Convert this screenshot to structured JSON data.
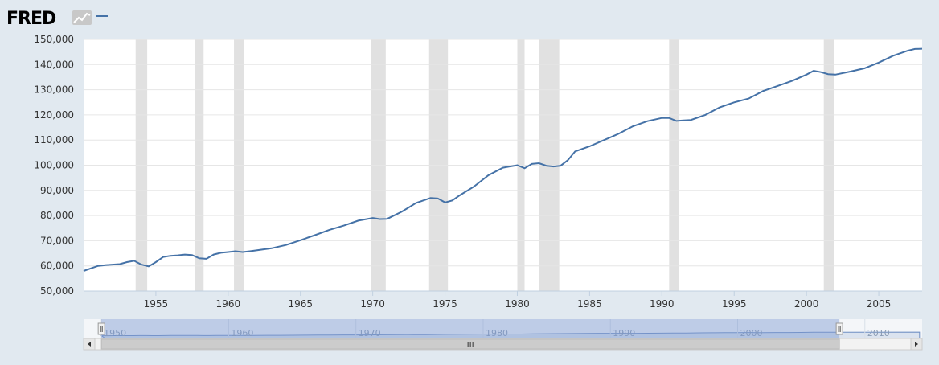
{
  "header": {
    "logo_text": "FRED",
    "logo_icon": "fred-chart-icon",
    "legend_symbol": "line-legend-swatch"
  },
  "colors": {
    "background": "#e1e9f0",
    "plot_background": "#ffffff",
    "series_line": "#4572a7",
    "recession_band": "#e1e1e1",
    "gridline": "#e6e6e6",
    "navigator_fill": "#c7d3e6",
    "navigator_selection": "#a9bde0",
    "scrollbar_thumb": "#cccccc",
    "scrollbar_track": "#f2f2f2"
  },
  "chart_data": {
    "type": "line",
    "title": "",
    "xlabel": "",
    "ylabel": "",
    "grid": true,
    "xlim": [
      1950.0,
      2008.0
    ],
    "ylim": [
      50000,
      150000
    ],
    "y_ticks": [
      "50,000",
      "60,000",
      "70,000",
      "80,000",
      "90,000",
      "100,000",
      "110,000",
      "120,000",
      "130,000",
      "140,000",
      "150,000"
    ],
    "y_tick_values": [
      50000,
      60000,
      70000,
      80000,
      90000,
      100000,
      110000,
      120000,
      130000,
      140000,
      150000
    ],
    "x_ticks": [
      "1955",
      "1960",
      "1965",
      "1970",
      "1975",
      "1980",
      "1985",
      "1990",
      "1995",
      "2000",
      "2005"
    ],
    "x_tick_values": [
      1955,
      1960,
      1965,
      1970,
      1975,
      1980,
      1985,
      1990,
      1995,
      2000,
      2005
    ],
    "recessions": [
      [
        1953.6,
        1954.4
      ],
      [
        1957.7,
        1958.3
      ],
      [
        1960.4,
        1961.1
      ],
      [
        1969.9,
        1970.9
      ],
      [
        1973.9,
        1975.2
      ],
      [
        1980.0,
        1980.5
      ],
      [
        1981.5,
        1982.9
      ],
      [
        1990.5,
        1991.2
      ],
      [
        2001.2,
        2001.9
      ]
    ],
    "series": [
      {
        "x": [
          1950.0,
          1950.5,
          1951.0,
          1951.5,
          1952.0,
          1952.5,
          1953.0,
          1953.5,
          1954.0,
          1954.5,
          1955.0,
          1955.5,
          1956.0,
          1956.5,
          1957.0,
          1957.5,
          1958.0,
          1958.5,
          1959.0,
          1959.5,
          1960.0,
          1960.5,
          1961.0,
          1961.5,
          1962.0,
          1963.0,
          1964.0,
          1965.0,
          1966.0,
          1967.0,
          1968.0,
          1969.0,
          1970.0,
          1970.5,
          1971.0,
          1972.0,
          1973.0,
          1974.0,
          1974.5,
          1975.0,
          1975.5,
          1976.0,
          1977.0,
          1978.0,
          1979.0,
          1980.0,
          1980.5,
          1981.0,
          1981.5,
          1982.0,
          1982.5,
          1983.0,
          1983.5,
          1984.0,
          1985.0,
          1986.0,
          1987.0,
          1988.0,
          1989.0,
          1990.0,
          1990.5,
          1991.0,
          1991.5,
          1992.0,
          1993.0,
          1994.0,
          1995.0,
          1996.0,
          1997.0,
          1998.0,
          1999.0,
          2000.0,
          2000.5,
          2001.0,
          2001.5,
          2002.0,
          2003.0,
          2004.0,
          2005.0,
          2006.0,
          2007.0,
          2007.5,
          2008.0
        ],
        "values": [
          58000,
          59000,
          60000,
          60300,
          60500,
          60700,
          61500,
          62000,
          60500,
          59800,
          61500,
          63500,
          64000,
          64200,
          64500,
          64300,
          63000,
          62800,
          64500,
          65200,
          65500,
          65800,
          65500,
          65800,
          66200,
          67000,
          68300,
          70200,
          72200,
          74300,
          76000,
          78000,
          79000,
          78600,
          78700,
          81500,
          85000,
          87000,
          86800,
          85200,
          86000,
          88000,
          91500,
          96000,
          99000,
          100000,
          98800,
          100500,
          100800,
          99800,
          99500,
          99800,
          102000,
          105500,
          107500,
          110000,
          112500,
          115500,
          117500,
          118800,
          118800,
          117600,
          117800,
          118000,
          120000,
          123000,
          125000,
          126500,
          129500,
          131500,
          133500,
          136000,
          137500,
          137000,
          136200,
          136000,
          137200,
          138500,
          140800,
          143500,
          145500,
          146200,
          146300
        ]
      }
    ],
    "navigator": {
      "x_ticks": [
        "1950",
        "1960",
        "1970",
        "1980",
        "1990",
        "2000",
        "2010"
      ],
      "x_tick_values": [
        1950,
        1960,
        1970,
        1980,
        1990,
        2000,
        2010
      ],
      "xlim": [
        1948.6,
        2014.5
      ],
      "selection": [
        1950.0,
        2008.0
      ]
    }
  }
}
